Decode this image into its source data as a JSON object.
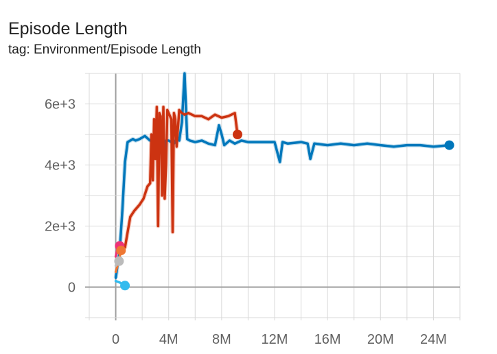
{
  "header": {
    "title": "Episode Length",
    "subtitle": "tag: Environment/Episode Length"
  },
  "colors": {
    "grid": "#d8d8d8",
    "zero_axis": "#9e9e9e",
    "tick_text": "#616161"
  },
  "chart_data": {
    "type": "line",
    "title": "Episode Length",
    "subtitle": "tag: Environment/Episode Length",
    "xlabel": "",
    "ylabel": "",
    "xlim": [
      -2000000,
      26000000
    ],
    "ylim": [
      -1000,
      7000
    ],
    "x_ticks": [
      0,
      4000000,
      8000000,
      12000000,
      16000000,
      20000000,
      24000000
    ],
    "x_tick_labels": [
      "0",
      "4M",
      "8M",
      "12M",
      "16M",
      "20M",
      "24M"
    ],
    "y_ticks": [
      0,
      2000,
      4000,
      6000
    ],
    "y_tick_labels": [
      "0",
      "2e+3",
      "4e+3",
      "6e+3"
    ],
    "grid": true,
    "smoothing_shadow": true,
    "series": [
      {
        "color": "#0077bb",
        "shadow": "#a6cfe6",
        "x": [
          0,
          300000,
          500000,
          700000,
          900000,
          1100000,
          1300000,
          1500000,
          1800000,
          2200000,
          2600000,
          3000000,
          3200000,
          3400000,
          3600000,
          3800000,
          4000000,
          4200000,
          4400000,
          4600000,
          4800000,
          5000000,
          5200000,
          5400000,
          5600000,
          6000000,
          6500000,
          7000000,
          7500000,
          7800000,
          8000000,
          8200000,
          8600000,
          9000000,
          9500000,
          10000000,
          11000000,
          12000000,
          12400000,
          12600000,
          13000000,
          14000000,
          14500000,
          14700000,
          15000000,
          16000000,
          17000000,
          18000000,
          19000000,
          20000000,
          21000000,
          22000000,
          23000000,
          24000000,
          25200000
        ],
        "y": [
          300,
          1200,
          2500,
          4100,
          4750,
          4800,
          4850,
          4800,
          4850,
          4950,
          4800,
          4850,
          4600,
          4850,
          4100,
          4800,
          4800,
          4750,
          4700,
          4850,
          4800,
          5400,
          7000,
          4850,
          4800,
          4750,
          4800,
          4700,
          4650,
          5300,
          5000,
          4650,
          4800,
          4700,
          4800,
          4750,
          4750,
          4750,
          4100,
          4750,
          4700,
          4750,
          4700,
          4200,
          4700,
          4650,
          4700,
          4650,
          4700,
          4650,
          4600,
          4650,
          4650,
          4600,
          4650
        ]
      },
      {
        "color": "#cc3311",
        "shadow": "#f2b6a6",
        "x": [
          400000,
          700000,
          900000,
          1100000,
          1400000,
          1800000,
          2100000,
          2400000,
          2600000,
          2700000,
          2800000,
          2900000,
          3000000,
          3100000,
          3200000,
          3300000,
          3400000,
          3500000,
          3600000,
          3700000,
          3800000,
          3900000,
          4000000,
          4200000,
          4300000,
          4400000,
          4500000,
          4600000,
          4800000,
          5000000,
          5200000,
          5500000,
          6000000,
          6500000,
          7000000,
          7500000,
          8000000,
          8500000,
          9000000,
          9200000
        ],
        "y": [
          1400,
          1300,
          1800,
          2300,
          2500,
          2700,
          2900,
          3300,
          3400,
          5000,
          3500,
          5500,
          4200,
          5900,
          2000,
          5700,
          5600,
          3000,
          5900,
          2900,
          4000,
          5800,
          5700,
          5500,
          1800,
          5700,
          5500,
          4600,
          5800,
          5700,
          5650,
          5700,
          5600,
          5600,
          5500,
          5650,
          5550,
          5600,
          5700,
          5000
        ]
      },
      {
        "color": "#ee3377",
        "x": [
          0,
          150000,
          300000
        ],
        "y": [
          1000,
          1300,
          1350
        ]
      },
      {
        "color": "#ee7733",
        "x": [
          0,
          200000,
          400000
        ],
        "y": [
          500,
          800,
          1200
        ]
      },
      {
        "color": "#33bbee",
        "x": [
          0,
          300000,
          700000
        ],
        "y": [
          200,
          150,
          50
        ]
      },
      {
        "color": "#bbbbbb",
        "x": [
          0,
          150000,
          250000
        ],
        "y": [
          700,
          900,
          850
        ]
      }
    ]
  }
}
